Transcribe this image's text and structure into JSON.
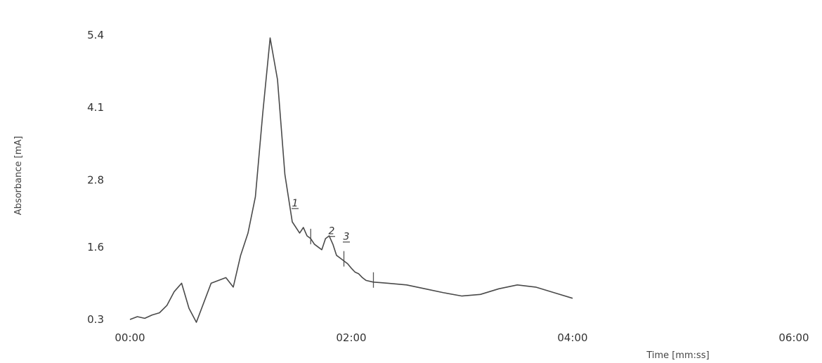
{
  "chart_data": {
    "type": "line",
    "title": "",
    "xlabel": "Time [mm:ss]",
    "ylabel": "Absorbance [mA]",
    "x_unit": "mm:ss",
    "xlim": [
      "00:00",
      "06:00"
    ],
    "ylim": [
      0.3,
      5.4
    ],
    "x_ticks": [
      "00:00",
      "02:00",
      "04:00",
      "06:00"
    ],
    "y_ticks": [
      "0.3",
      "1.6",
      "2.8",
      "4.1",
      "5.4"
    ],
    "grid": false,
    "legend": "none",
    "series": [
      {
        "x": [
          "00:00",
          "00:04",
          "00:08",
          "00:12",
          "00:16",
          "00:20",
          "00:24",
          "00:28",
          "00:32",
          "00:36",
          "00:40",
          "00:44",
          "00:48",
          "00:52",
          "00:56",
          "01:00",
          "01:04",
          "01:08",
          "01:12",
          "01:16",
          "01:20",
          "01:24",
          "01:28",
          "01:32",
          "01:34",
          "01:36",
          "01:38",
          "01:40",
          "01:42",
          "01:44",
          "01:46",
          "01:48",
          "01:50",
          "01:52",
          "01:54",
          "01:56",
          "01:58",
          "02:00",
          "02:02",
          "02:04",
          "02:06",
          "02:08",
          "02:12",
          "02:16",
          "02:20",
          "02:30",
          "02:40",
          "02:50",
          "03:00",
          "03:10",
          "03:20",
          "03:30",
          "03:40",
          "03:50",
          "04:00"
        ],
        "y": [
          0.3,
          0.35,
          0.32,
          0.38,
          0.42,
          0.55,
          0.8,
          0.95,
          0.5,
          0.25,
          0.6,
          0.95,
          1.0,
          1.05,
          0.88,
          1.45,
          1.85,
          2.5,
          4.0,
          5.35,
          4.6,
          2.9,
          2.05,
          1.85,
          1.95,
          1.8,
          1.75,
          1.65,
          1.6,
          1.55,
          1.75,
          1.8,
          1.65,
          1.45,
          1.4,
          1.35,
          1.3,
          1.22,
          1.15,
          1.12,
          1.05,
          1.0,
          0.97,
          0.96,
          0.95,
          0.92,
          0.85,
          0.78,
          0.72,
          0.75,
          0.85,
          0.92,
          0.88,
          0.78,
          0.68
        ]
      }
    ],
    "annotations": [
      {
        "label": "1",
        "x": "01:28"
      },
      {
        "label": "2",
        "x": "01:44"
      },
      {
        "label": "3",
        "x": "01:52"
      }
    ]
  }
}
